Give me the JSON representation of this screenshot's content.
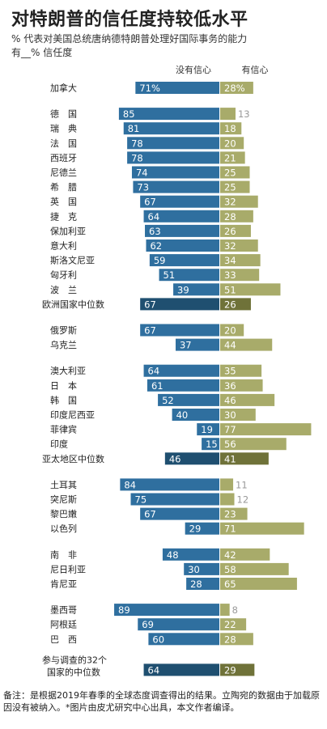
{
  "title": "对特朗普的信任度持较低水平",
  "subtitle_line1": "% 代表对美国总统唐纳德特朗普处理好国际事务的能力",
  "subtitle_line2": "有__% 信任度",
  "note": "备注：是根据2019年春季的全球态度调查得出的结果。立陶宛的数据由于加载原因没有被纳入。*图片由皮尤研究中心出具，本文作者编译。",
  "colors": {
    "no_confidence": "#2f6f9f",
    "confidence": "#a8ab6a",
    "median_no": "#1f4f70",
    "median_yes": "#6f7239"
  },
  "chart_data": {
    "type": "bar",
    "layout": "diverging",
    "series": [
      {
        "name": "没有信心",
        "key": "no"
      },
      {
        "name": "有信心",
        "key": "yes"
      }
    ],
    "groups": [
      {
        "rows": [
          {
            "label": "加拿大",
            "no": 71,
            "yes": 28,
            "no_text": "71%",
            "yes_text": "28%"
          }
        ]
      },
      {
        "rows": [
          {
            "label": "德　国",
            "no": 85,
            "yes": 13
          },
          {
            "label": "瑞　典",
            "no": 81,
            "yes": 18
          },
          {
            "label": "法　国",
            "no": 78,
            "yes": 20
          },
          {
            "label": "西班牙",
            "no": 78,
            "yes": 21
          },
          {
            "label": "尼德兰",
            "no": 74,
            "yes": 25
          },
          {
            "label": "希　腊",
            "no": 73,
            "yes": 25
          },
          {
            "label": "英　国",
            "no": 67,
            "yes": 32
          },
          {
            "label": "捷　克",
            "no": 64,
            "yes": 28
          },
          {
            "label": "保加利亚",
            "no": 63,
            "yes": 26
          },
          {
            "label": "意大利",
            "no": 62,
            "yes": 32
          },
          {
            "label": "斯洛文尼亚",
            "no": 59,
            "yes": 34
          },
          {
            "label": "匈牙利",
            "no": 51,
            "yes": 33
          },
          {
            "label": "波　兰",
            "no": 39,
            "yes": 51
          },
          {
            "label": "欧洲国家中位数",
            "no": 67,
            "yes": 26,
            "median": true
          }
        ]
      },
      {
        "rows": [
          {
            "label": "俄罗斯",
            "no": 67,
            "yes": 20
          },
          {
            "label": "乌克兰",
            "no": 37,
            "yes": 44
          }
        ]
      },
      {
        "rows": [
          {
            "label": "澳大利亚",
            "no": 64,
            "yes": 35
          },
          {
            "label": "日　本",
            "no": 61,
            "yes": 36
          },
          {
            "label": "韩　国",
            "no": 52,
            "yes": 46
          },
          {
            "label": "印度尼西亚",
            "no": 40,
            "yes": 30
          },
          {
            "label": "菲律宾",
            "no": 19,
            "yes": 77
          },
          {
            "label": "印度",
            "no": 15,
            "yes": 56
          },
          {
            "label": "亚太地区中位数",
            "no": 46,
            "yes": 41,
            "median": true
          }
        ]
      },
      {
        "rows": [
          {
            "label": "土耳其",
            "no": 84,
            "yes": 11
          },
          {
            "label": "突尼斯",
            "no": 75,
            "yes": 12
          },
          {
            "label": "黎巴嫩",
            "no": 67,
            "yes": 23
          },
          {
            "label": "以色列",
            "no": 29,
            "yes": 71
          }
        ]
      },
      {
        "rows": [
          {
            "label": "南　非",
            "no": 48,
            "yes": 42
          },
          {
            "label": "尼日利亚",
            "no": 30,
            "yes": 58
          },
          {
            "label": "肯尼亚",
            "no": 28,
            "yes": 65
          }
        ]
      },
      {
        "rows": [
          {
            "label": "墨西哥",
            "no": 89,
            "yes": 8
          },
          {
            "label": "阿根廷",
            "no": 69,
            "yes": 22
          },
          {
            "label": "巴　西",
            "no": 60,
            "yes": 28
          }
        ]
      },
      {
        "rows": [
          {
            "label": "参与调查的32个",
            "label2": "国家的中位数",
            "no": 64,
            "yes": 29,
            "median": true
          }
        ]
      }
    ]
  }
}
